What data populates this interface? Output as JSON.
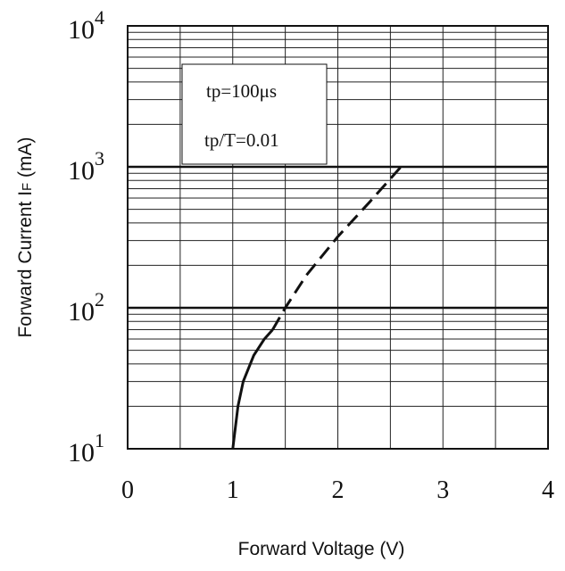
{
  "chart_data": {
    "type": "line",
    "xlabel": "Forward Voltage (V)",
    "ylabel_main": "Forward Current I",
    "ylabel_sub": "F",
    "ylabel_unit": " (mA)",
    "x_ticks": [
      "0",
      "1",
      "2",
      "3",
      "4"
    ],
    "y_ticks": [
      {
        "base": "10",
        "exp": "1"
      },
      {
        "base": "10",
        "exp": "2"
      },
      {
        "base": "10",
        "exp": "3"
      },
      {
        "base": "10",
        "exp": "4"
      }
    ],
    "xlim": [
      0,
      4
    ],
    "ylim": [
      10,
      10000
    ],
    "y_scale": "log",
    "grid": true,
    "annotations": [
      "tp=100μs",
      "tp/T=0.01"
    ],
    "series": [
      {
        "style": "solid",
        "x": [
          1.0,
          1.05,
          1.1,
          1.2,
          1.3,
          1.38
        ],
        "y": [
          10,
          20,
          30,
          46,
          60,
          70
        ]
      },
      {
        "style": "dashed",
        "x": [
          1.38,
          1.5,
          1.7,
          2.0,
          2.3,
          2.6
        ],
        "y": [
          70,
          100,
          170,
          320,
          560,
          1000
        ]
      }
    ]
  }
}
